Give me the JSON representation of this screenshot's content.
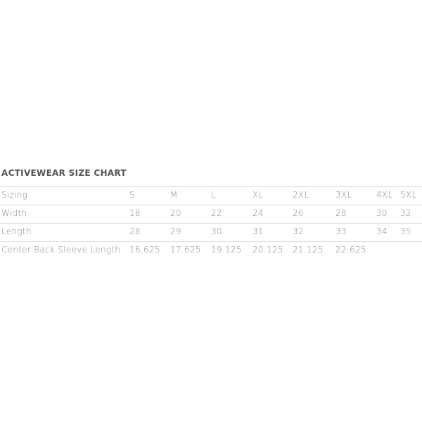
{
  "title": "ACTIVEWEAR SIZE CHART",
  "rows": [
    [
      "Sizing",
      "S",
      "M",
      "L",
      "XL",
      "2XL",
      "3XL",
      "4XL",
      "5XL"
    ],
    [
      "Width",
      "18",
      "20",
      "22",
      "24",
      "26",
      "28",
      "30",
      "32"
    ],
    [
      "Length",
      "28",
      "29",
      "30",
      "31",
      "32",
      "33",
      "34",
      "35"
    ],
    [
      "Center Back Sleeve Length",
      "16.625",
      "17.625",
      "19.125",
      "20.125",
      "21.125",
      "22.625",
      "",
      ""
    ]
  ]
}
